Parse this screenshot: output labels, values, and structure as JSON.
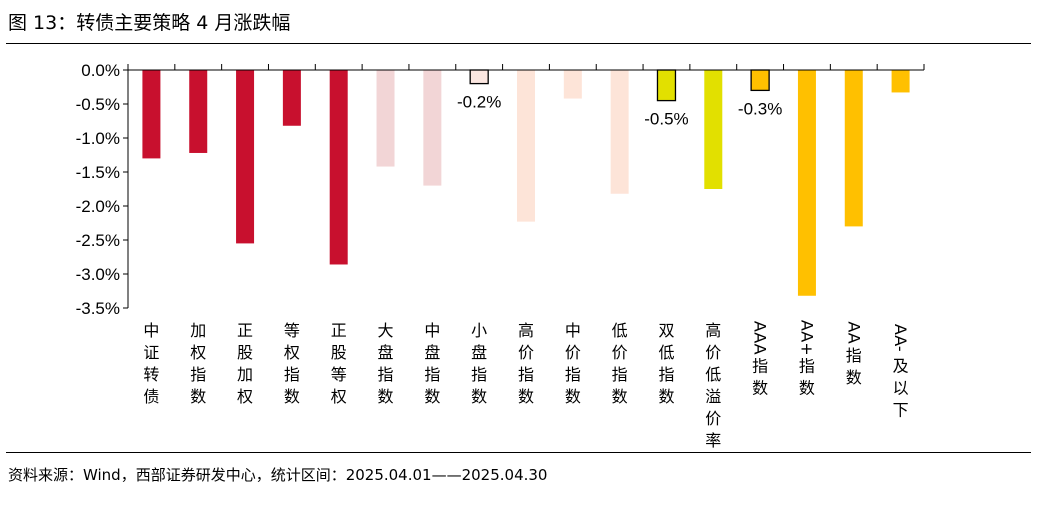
{
  "figure": {
    "title": "图 13：转债主要策略 4 月涨跌幅",
    "source": "资料来源：Wind，西部证券研发中心，统计区间：2025.04.01——2025.04.30"
  },
  "chart_data": {
    "type": "bar",
    "title": "转债主要策略 4 月涨跌幅",
    "xlabel": "",
    "ylabel": "",
    "ylim": [
      -3.5,
      0.0
    ],
    "yticks": [
      0.0,
      -0.5,
      -1.0,
      -1.5,
      -2.0,
      -2.5,
      -3.0,
      -3.5
    ],
    "ytick_labels": [
      "0.0%",
      "-0.5%",
      "-1.0%",
      "-1.5%",
      "-2.0%",
      "-2.5%",
      "-3.0%",
      "-3.5%"
    ],
    "grid": false,
    "legend": "none",
    "categories": [
      "中证转债",
      "加权指数",
      "正股加权",
      "等权指数",
      "正股等权",
      "大盘指数",
      "中盘指数",
      "小盘指数",
      "高价指数",
      "中价指数",
      "低价指数",
      "双低指数",
      "高价低溢价率",
      "AAA指数",
      "AA+指数",
      "AA指数",
      "AA-及以下"
    ],
    "values": [
      -1.3,
      -1.22,
      -2.55,
      -0.82,
      -2.86,
      -1.42,
      -1.7,
      -0.2,
      -2.23,
      -0.42,
      -1.82,
      -0.45,
      -1.75,
      -0.3,
      -3.32,
      -2.3,
      -0.33
    ],
    "data_labels": [
      "",
      "",
      "",
      "",
      "",
      "",
      "",
      "-0.2%",
      "",
      "",
      "",
      "-0.5%",
      "",
      "-0.3%",
      "",
      "",
      ""
    ],
    "colors": [
      "#c8102e",
      "#c8102e",
      "#c8102e",
      "#c8102e",
      "#c8102e",
      "#f2d5d6",
      "#f2d5d6",
      "#fbe6e0",
      "#fde4d8",
      "#fde4d8",
      "#fde4d8",
      "#e2e000",
      "#e2e000",
      "#ffc000",
      "#ffc000",
      "#ffc000",
      "#ffc000"
    ],
    "outlined": [
      false,
      false,
      false,
      false,
      false,
      false,
      false,
      true,
      false,
      false,
      false,
      true,
      false,
      true,
      false,
      false,
      false
    ]
  }
}
